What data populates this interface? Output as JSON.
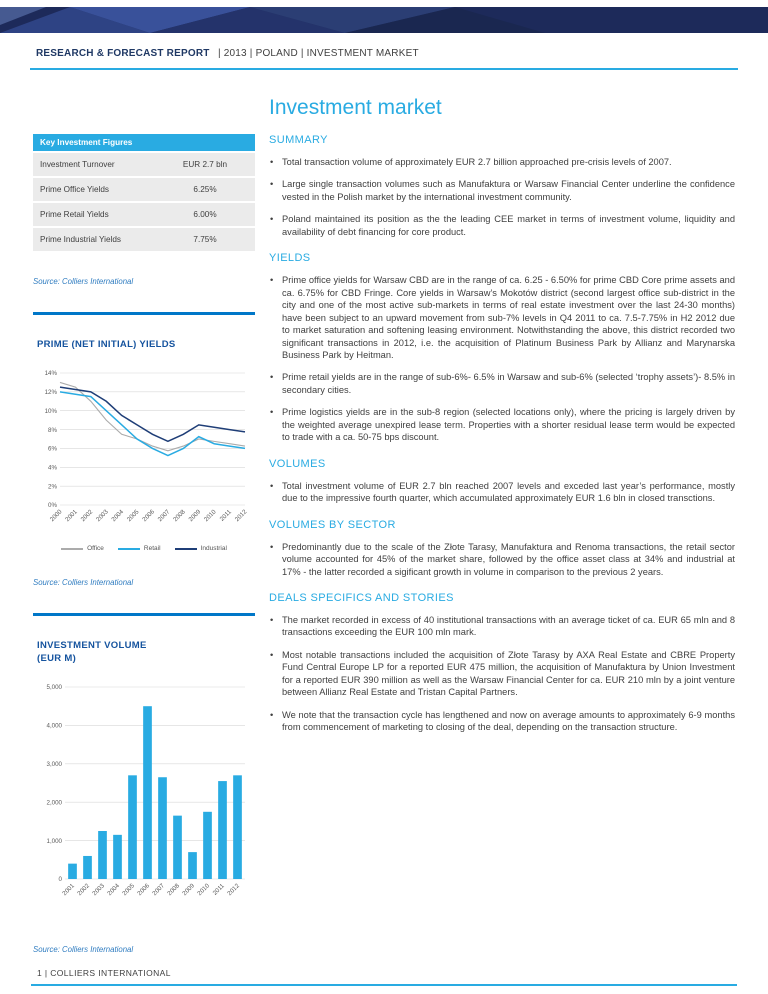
{
  "colors": {
    "accent": "#29ABE2",
    "banner_navy": "#1D2A5A",
    "divider_blue": "#0077C8",
    "chart_title_blue": "#15539E",
    "masthead_navy": "#1F3864",
    "source_blue": "#2F7CC0",
    "body_text": "#3F3F3F"
  },
  "masthead": {
    "report_type": "RESEARCH & FORECAST REPORT",
    "meta": "|  2013  |  POLAND  |  INVESTMENT MARKET"
  },
  "page_title": "Investment market",
  "sidebar": {
    "key_figures": {
      "title": "Key Investment Figures",
      "rows": [
        {
          "label": "Investment Turnover",
          "value": "EUR 2.7 bln"
        },
        {
          "label": "Prime Office Yields",
          "value": "6.25%"
        },
        {
          "label": "Prime Retail Yields",
          "value": "6.00%"
        },
        {
          "label": "Prime Industrial Yields",
          "value": "7.75%"
        }
      ]
    },
    "source": "Source: Colliers International"
  },
  "sections": [
    {
      "heading": "SUMMARY",
      "bullets": [
        "Total transaction volume of approximately EUR 2.7 billion approached pre-crisis levels of 2007.",
        "Large single transaction volumes such as Manufaktura or Warsaw Financial Center underline the confidence vested in the Polish market by the international investment community.",
        "Poland maintained its position as the the leading CEE market in terms of investment volume, liquidity and availability of debt financing for core product."
      ]
    },
    {
      "heading": "YIELDS",
      "bullets": [
        "Prime office yields for Warsaw CBD are in the range of ca. 6.25 - 6.50% for prime CBD Core prime assets and ca. 6.75% for CBD Fringe. Core yields in Warsaw’s Mokotów district (second largest office sub-district in the city and one of the most active sub-markets in terms of real estate investment over the last 24-30 months) have been subject to an upward movement from sub-7% levels in Q4 2011 to ca. 7.5-7.75% in H2 2012 due to market saturation and softening leasing environment. Notwithstanding the above, this district recorded two significant transactions in 2012, i.e. the acquisition of Platinum Business Park by Allianz and Marynarska Business Park by Heitman.",
        "Prime retail yields are in the range of sub-6%- 6.5% in Warsaw and sub-6% (selected ‘trophy assets’)- 8.5% in secondary cities.",
        "Prime logistics yields are in the sub-8 region (selected locations only), where the pricing is largely driven by the weighted average unexpired lease term. Properties with a shorter residual lease term would be expected to trade with a ca. 50-75 bps discount."
      ]
    },
    {
      "heading": "VOLUMES",
      "bullets": [
        "Total investment volume of EUR 2.7 bln reached 2007 levels and exceded last year’s performance, mostly due to the impressive fourth quarter, which accumulated approximately EUR 1.6 bln in closed transctions."
      ]
    },
    {
      "heading": "VOLUMES BY SECTOR",
      "bullets": [
        "Predominantly due to the scale of the Złote Tarasy, Manufaktura and Renoma transactions, the retail sector volume accounted for 45% of the market share, followed by the office asset class at 34% and industrial at 17% - the latter recorded a sigificant growth in volume in comparison to the previous 2 years."
      ]
    },
    {
      "heading": "DEALS SPECIFICS AND STORIES",
      "bullets": [
        "The market recorded in excess of 40 institutional transactions with an average ticket of ca. EUR 65 mln and 8 transactions exceeding the EUR 100 mln mark.",
        "Most notable transactions included the acquisition of Złote Tarasy by AXA Real Estate and CBRE Property Fund Central Europe LP for a reported EUR 475 million, the acquisition of Manufaktura by Union Investment for a reported EUR 390 million as well as the Warsaw Financial Center for ca. EUR 210 mln by a joint venture between Allianz Real Estate and Tristan Capital Partners.",
        "We note that the transaction cycle has lengthened and now on average amounts to approximately 6-9 months from commencement of marketing to closing of the deal, depending on the transaction structure."
      ]
    }
  ],
  "footer": {
    "text": "1  |  COLLIERS INTERNATIONAL"
  },
  "chart_data": [
    {
      "type": "line",
      "title": "PRIME (NET INITIAL) YIELDS",
      "x": [
        "2000",
        "2001",
        "2002",
        "2003",
        "2004",
        "2005",
        "2006",
        "2007",
        "2008",
        "2009",
        "2010",
        "2011",
        "2012"
      ],
      "series": [
        {
          "name": "Office",
          "color": "#ABABAB",
          "stroke_width": 1.1,
          "values": [
            13.0,
            12.5,
            11.0,
            9.0,
            7.5,
            7.0,
            6.25,
            5.75,
            6.25,
            7.0,
            6.75,
            6.5,
            6.25
          ]
        },
        {
          "name": "Retail",
          "color": "#29ABE2",
          "stroke_width": 1.5,
          "values": [
            12.0,
            11.75,
            11.5,
            10.0,
            8.5,
            7.0,
            6.0,
            5.25,
            6.0,
            7.25,
            6.5,
            6.25,
            6.0
          ]
        },
        {
          "name": "Industrial",
          "color": "#1F3E77",
          "stroke_width": 1.5,
          "values": [
            12.5,
            12.25,
            12.0,
            11.0,
            9.5,
            8.5,
            7.5,
            6.75,
            7.5,
            8.5,
            8.25,
            8.0,
            7.75
          ]
        }
      ],
      "ylim": [
        0,
        14
      ],
      "ytick_step": 2,
      "ytick_suffix": "%",
      "xlabel": "",
      "ylabel": "",
      "grid": true,
      "legend_position": "bottom"
    },
    {
      "type": "bar",
      "title": "INVESTMENT VOLUME (EUR M)",
      "categories": [
        "2001",
        "2002",
        "2003",
        "2004",
        "2005",
        "2006",
        "2007",
        "2008",
        "2009",
        "2010",
        "2011",
        "2012"
      ],
      "values": [
        400,
        600,
        1250,
        1150,
        2700,
        4500,
        2650,
        1650,
        700,
        1750,
        2550,
        2700
      ],
      "bar_color": "#29ABE2",
      "ylim": [
        0,
        5000
      ],
      "ytick_step": 1000,
      "xlabel": "",
      "ylabel": "",
      "grid": true,
      "legend_position": "none"
    }
  ]
}
